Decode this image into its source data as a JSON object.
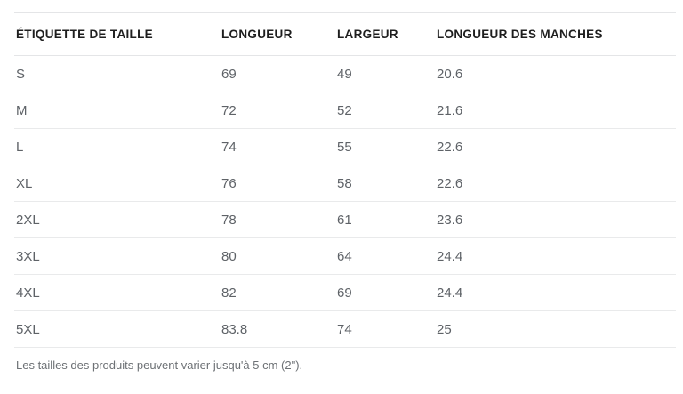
{
  "size_chart": {
    "unit_note": "Les tailles des produits peuvent varier jusqu'à 5 cm (2\").",
    "headers": [
      "ÉTIQUETTE DE TAILLE",
      "LONGUEUR",
      "LARGEUR",
      "LONGUEUR DES MANCHES"
    ],
    "rows": [
      {
        "label": "S",
        "longueur": "69",
        "largeur": "49",
        "manches": "20.6"
      },
      {
        "label": "M",
        "longueur": "72",
        "largeur": "52",
        "manches": "21.6"
      },
      {
        "label": "L",
        "longueur": "74",
        "largeur": "55",
        "manches": "22.6"
      },
      {
        "label": "XL",
        "longueur": "76",
        "largeur": "58",
        "manches": "22.6"
      },
      {
        "label": "2XL",
        "longueur": "78",
        "largeur": "61",
        "manches": "23.6"
      },
      {
        "label": "3XL",
        "longueur": "80",
        "largeur": "64",
        "manches": "24.4"
      },
      {
        "label": "4XL",
        "longueur": "82",
        "largeur": "69",
        "manches": "24.4"
      },
      {
        "label": "5XL",
        "longueur": "83.8",
        "largeur": "74",
        "manches": "25"
      }
    ],
    "colors": {
      "header_text": "#1e1e1e",
      "body_text": "#5e6267",
      "note_text": "#6d7175",
      "border": "#e4e5e7"
    }
  }
}
